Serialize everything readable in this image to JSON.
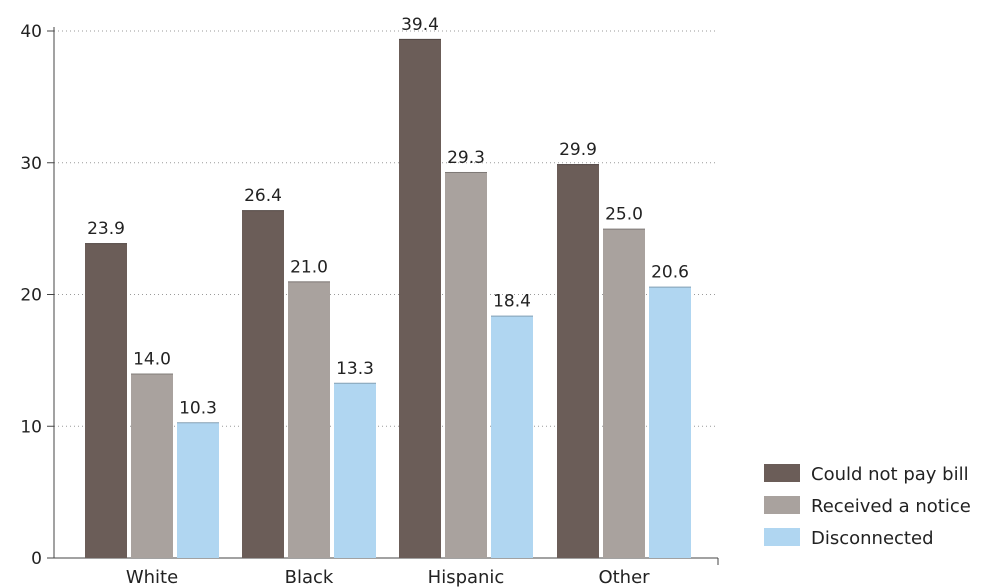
{
  "chart_data": {
    "type": "bar",
    "categories": [
      "White",
      "Black",
      "Hispanic",
      "Other"
    ],
    "series": [
      {
        "name": "Could not pay bill",
        "color": "#6b5d58",
        "values": [
          23.9,
          26.4,
          39.4,
          29.9
        ]
      },
      {
        "name": "Received a notice",
        "color": "#a9a29e",
        "values": [
          14.0,
          21.0,
          29.3,
          25.0
        ]
      },
      {
        "name": "Disconnected",
        "color": "#b0d6f1",
        "values": [
          10.3,
          13.3,
          18.4,
          20.6
        ]
      }
    ],
    "value_labels": [
      [
        "23.9",
        "26.4",
        "39.4",
        "29.9"
      ],
      [
        "14.0",
        "21.0",
        "29.3",
        "25.0"
      ],
      [
        "10.3",
        "13.3",
        "18.4",
        "20.6"
      ]
    ],
    "yticks": [
      0,
      10,
      20,
      30,
      40
    ],
    "ylim": [
      0,
      40
    ],
    "grid": true,
    "legend_position": "bottom-right",
    "title": "",
    "xlabel": "",
    "ylabel": ""
  }
}
